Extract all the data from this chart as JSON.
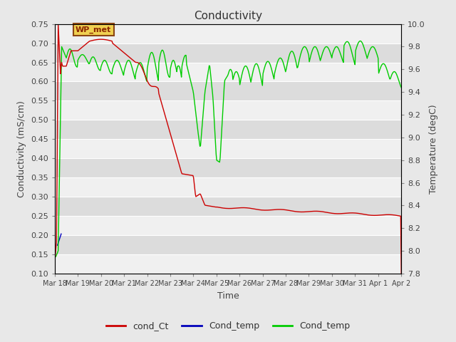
{
  "title": "Conductivity",
  "xlabel": "Time",
  "ylabel_left": "Conductivity (mS/cm)",
  "ylabel_right": "Temperature (degC)",
  "ylim_left": [
    0.1,
    0.75
  ],
  "ylim_right": [
    7.8,
    10.0
  ],
  "yticks_left": [
    0.1,
    0.15,
    0.2,
    0.25,
    0.3,
    0.35,
    0.4,
    0.45,
    0.5,
    0.55,
    0.6,
    0.65,
    0.7,
    0.75
  ],
  "yticks_right": [
    7.8,
    8.0,
    8.2,
    8.4,
    8.6,
    8.8,
    9.0,
    9.2,
    9.4,
    9.6,
    9.8,
    10.0
  ],
  "xtick_labels": [
    "Mar 18",
    "Mar 19",
    "Mar 20",
    "Mar 21",
    "Mar 22",
    "Mar 23",
    "Mar 24",
    "Mar 25",
    "Mar 26",
    "Mar 27",
    "Mar 28",
    "Mar 29",
    "Mar 30",
    "Mar 31",
    "Apr 1",
    "Apr 2"
  ],
  "annotation_text": "WP_met",
  "bg_color": "#e8e8e8",
  "plot_bg_color": "#d4d4d4",
  "grid_color": "#f0f0f0",
  "cond_ct_color": "#cc0000",
  "cond_temp_blue_color": "#0000bb",
  "cond_temp_green_color": "#00cc00",
  "legend_entries": [
    "cond_Ct",
    "Cond_temp",
    "Cond_temp"
  ],
  "legend_colors": [
    "#cc0000",
    "#0000bb",
    "#00cc00"
  ],
  "n_days": 15,
  "n_pts": 600
}
